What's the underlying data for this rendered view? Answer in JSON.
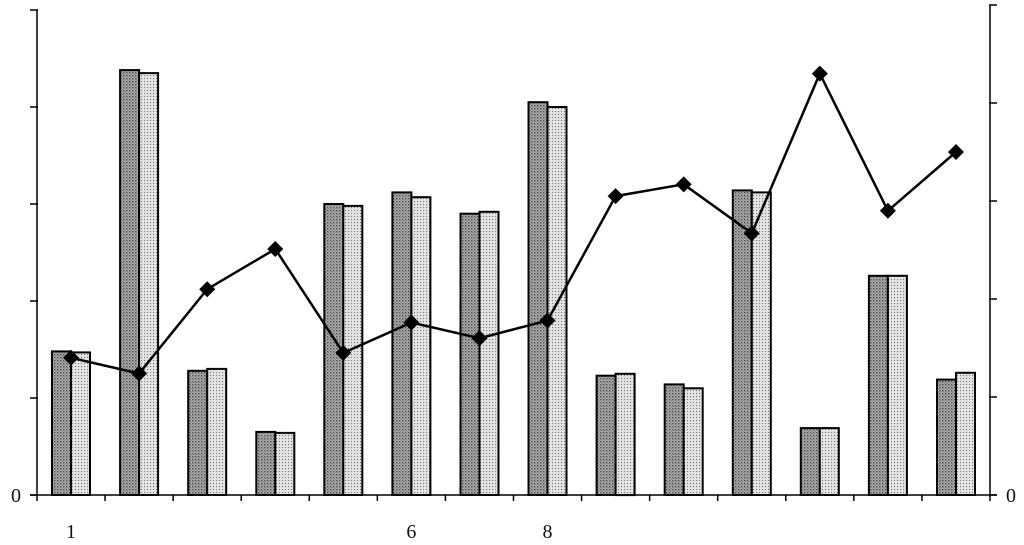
{
  "chart_data": {
    "type": "bar",
    "combo": "bar+line",
    "categories": [
      "1",
      "2",
      "3",
      "4",
      "5",
      "6",
      "7",
      "8",
      "9",
      "10",
      "11",
      "12",
      "13",
      "14"
    ],
    "x_tick_labels_shown": [
      {
        "index": 0,
        "label": "1"
      },
      {
        "index": 5,
        "label": "6"
      },
      {
        "index": 7,
        "label": "8"
      }
    ],
    "series": [
      {
        "kind": "bar",
        "axis": "left",
        "pattern": "dark-dots",
        "values": [
          1.48,
          4.38,
          1.28,
          0.65,
          3.0,
          3.12,
          2.9,
          4.05,
          1.23,
          1.14,
          3.14,
          0.69,
          2.26,
          1.19
        ]
      },
      {
        "kind": "bar",
        "axis": "left",
        "pattern": "light-dots",
        "values": [
          1.47,
          4.35,
          1.3,
          0.64,
          2.98,
          3.07,
          2.92,
          4.0,
          1.25,
          1.1,
          3.12,
          0.69,
          2.26,
          1.26
        ]
      },
      {
        "kind": "line",
        "axis": "right",
        "marker": "diamond",
        "values": [
          1.4,
          1.24,
          2.1,
          2.51,
          1.45,
          1.76,
          1.6,
          1.78,
          3.05,
          3.17,
          2.67,
          4.3,
          2.9,
          3.5
        ]
      }
    ],
    "left_axis": {
      "ylim": [
        0,
        5
      ],
      "ticks": [
        0,
        1,
        2,
        3,
        4,
        5
      ],
      "labels_shown": {
        "0": "0"
      }
    },
    "right_axis": {
      "ylim": [
        0,
        5
      ],
      "ticks": [
        0,
        1,
        2,
        3,
        4,
        5
      ],
      "labels_shown": {
        "0": "0"
      }
    },
    "title": "",
    "xlabel": "",
    "ylabel": "",
    "grid": false,
    "legend": "none"
  }
}
